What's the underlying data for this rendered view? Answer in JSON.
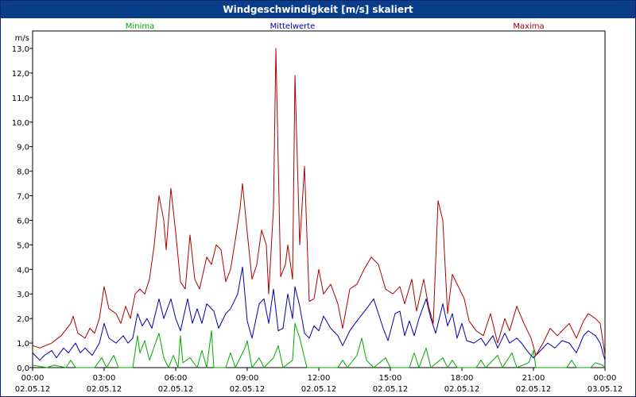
{
  "window": {
    "title": "Windgeschwindigkeit [m/s] skaliert"
  },
  "chart_data": {
    "type": "line",
    "title": "Windgeschwindigkeit [m/s] skaliert",
    "ylabel": "m/s",
    "ylim": [
      0,
      13
    ],
    "y_ticks": [
      "0,0",
      "1,0",
      "2,0",
      "3,0",
      "4,0",
      "5,0",
      "6,0",
      "7,0",
      "8,0",
      "9,0",
      "10,0",
      "11,0",
      "12,0",
      "13,0"
    ],
    "xlim_hours": [
      0,
      24
    ],
    "x_ticks": [
      {
        "time": "00:00",
        "date": "02.05.12"
      },
      {
        "time": "03:00",
        "date": "02.05.12"
      },
      {
        "time": "06:00",
        "date": "02.05.12"
      },
      {
        "time": "09:00",
        "date": "02.05.12"
      },
      {
        "time": "12:00",
        "date": "02.05.12"
      },
      {
        "time": "15:00",
        "date": "02.05.12"
      },
      {
        "time": "18:00",
        "date": "02.05.12"
      },
      {
        "time": "21:00",
        "date": "02.05.12"
      },
      {
        "time": "00:00",
        "date": "03.05.12"
      }
    ],
    "grid": true,
    "legend": [
      "Minima",
      "Mittelwerte",
      "Maxima"
    ],
    "colors": {
      "min": "#00aa00",
      "mean": "#0000aa",
      "max": "#aa0000",
      "grid": "#000000",
      "frame": "#0a3d8a"
    },
    "series": [
      {
        "name": "Minima",
        "points": [
          [
            0,
            0.1
          ],
          [
            0.6,
            0.0
          ],
          [
            0.9,
            0.1
          ],
          [
            1.4,
            0.0
          ],
          [
            1.6,
            0.3
          ],
          [
            1.8,
            0.0
          ],
          [
            2.6,
            0.0
          ],
          [
            2.9,
            0.4
          ],
          [
            3.1,
            0.0
          ],
          [
            3.4,
            0.5
          ],
          [
            3.6,
            0.0
          ],
          [
            4.2,
            0.0
          ],
          [
            4.4,
            1.3
          ],
          [
            4.5,
            0.6
          ],
          [
            4.7,
            1.1
          ],
          [
            4.9,
            0.3
          ],
          [
            5.3,
            1.4
          ],
          [
            5.5,
            0.4
          ],
          [
            5.7,
            0.0
          ],
          [
            5.9,
            0.5
          ],
          [
            6.1,
            0.0
          ],
          [
            6.2,
            1.3
          ],
          [
            6.3,
            0.2
          ],
          [
            6.6,
            0.4
          ],
          [
            6.9,
            0.0
          ],
          [
            7.1,
            0.7
          ],
          [
            7.3,
            0.0
          ],
          [
            7.5,
            1.5
          ],
          [
            7.6,
            0.0
          ],
          [
            8.1,
            0.0
          ],
          [
            8.3,
            0.6
          ],
          [
            8.5,
            0.0
          ],
          [
            8.9,
            0.8
          ],
          [
            9.0,
            1.1
          ],
          [
            9.2,
            0.0
          ],
          [
            9.5,
            0.4
          ],
          [
            9.7,
            0.0
          ],
          [
            10.1,
            0.4
          ],
          [
            10.3,
            0.9
          ],
          [
            10.5,
            0.0
          ],
          [
            10.9,
            0.3
          ],
          [
            11.0,
            1.8
          ],
          [
            11.2,
            1.2
          ],
          [
            11.5,
            0.0
          ],
          [
            12.8,
            0.0
          ],
          [
            13.0,
            0.3
          ],
          [
            13.2,
            0.0
          ],
          [
            13.6,
            0.5
          ],
          [
            13.8,
            1.2
          ],
          [
            14.0,
            0.3
          ],
          [
            14.3,
            0.0
          ],
          [
            14.8,
            0.4
          ],
          [
            15.0,
            0.0
          ],
          [
            15.8,
            0.0
          ],
          [
            16.0,
            0.6
          ],
          [
            16.2,
            0.0
          ],
          [
            16.5,
            0.8
          ],
          [
            16.7,
            0.0
          ],
          [
            17.2,
            0.4
          ],
          [
            17.4,
            0.0
          ],
          [
            17.6,
            0.3
          ],
          [
            17.8,
            0.0
          ],
          [
            18.6,
            0.0
          ],
          [
            18.8,
            0.3
          ],
          [
            19.0,
            0.0
          ],
          [
            19.5,
            0.5
          ],
          [
            19.7,
            0.0
          ],
          [
            20.1,
            0.6
          ],
          [
            20.3,
            0.0
          ],
          [
            20.8,
            0.2
          ],
          [
            21.0,
            0.7
          ],
          [
            21.1,
            0.0
          ],
          [
            22.4,
            0.0
          ],
          [
            22.6,
            0.3
          ],
          [
            22.8,
            0.0
          ],
          [
            23.4,
            0.0
          ],
          [
            23.6,
            0.2
          ],
          [
            23.9,
            0.1
          ],
          [
            24.0,
            0.0
          ]
        ]
      },
      {
        "name": "Mittelwerte",
        "points": [
          [
            0,
            0.6
          ],
          [
            0.3,
            0.3
          ],
          [
            0.5,
            0.5
          ],
          [
            0.8,
            0.7
          ],
          [
            1.0,
            0.4
          ],
          [
            1.3,
            0.8
          ],
          [
            1.5,
            0.6
          ],
          [
            1.8,
            1.0
          ],
          [
            2.0,
            0.6
          ],
          [
            2.2,
            0.8
          ],
          [
            2.5,
            0.5
          ],
          [
            2.8,
            1.0
          ],
          [
            3.0,
            1.8
          ],
          [
            3.2,
            1.2
          ],
          [
            3.5,
            1.0
          ],
          [
            3.8,
            1.3
          ],
          [
            4.0,
            1.0
          ],
          [
            4.2,
            1.2
          ],
          [
            4.4,
            2.2
          ],
          [
            4.6,
            1.7
          ],
          [
            4.8,
            2.0
          ],
          [
            5.0,
            1.6
          ],
          [
            5.3,
            2.8
          ],
          [
            5.5,
            2.0
          ],
          [
            5.8,
            2.8
          ],
          [
            6.0,
            2.0
          ],
          [
            6.2,
            1.5
          ],
          [
            6.5,
            2.8
          ],
          [
            6.7,
            1.8
          ],
          [
            6.9,
            2.4
          ],
          [
            7.1,
            1.8
          ],
          [
            7.3,
            2.6
          ],
          [
            7.6,
            2.3
          ],
          [
            7.8,
            1.6
          ],
          [
            8.1,
            2.2
          ],
          [
            8.3,
            2.4
          ],
          [
            8.6,
            3.0
          ],
          [
            8.8,
            4.1
          ],
          [
            9.0,
            1.9
          ],
          [
            9.2,
            1.2
          ],
          [
            9.5,
            2.6
          ],
          [
            9.7,
            2.8
          ],
          [
            9.9,
            1.8
          ],
          [
            10.1,
            3.2
          ],
          [
            10.3,
            1.5
          ],
          [
            10.5,
            1.6
          ],
          [
            10.7,
            3.0
          ],
          [
            10.9,
            2.0
          ],
          [
            11.0,
            3.3
          ],
          [
            11.2,
            2.5
          ],
          [
            11.4,
            1.4
          ],
          [
            11.6,
            1.2
          ],
          [
            11.8,
            1.7
          ],
          [
            12.0,
            1.5
          ],
          [
            12.2,
            2.1
          ],
          [
            12.5,
            1.6
          ],
          [
            12.8,
            1.3
          ],
          [
            13.0,
            0.9
          ],
          [
            13.3,
            1.5
          ],
          [
            13.6,
            1.9
          ],
          [
            14.0,
            2.4
          ],
          [
            14.3,
            2.8
          ],
          [
            14.5,
            2.2
          ],
          [
            14.7,
            1.6
          ],
          [
            14.9,
            1.1
          ],
          [
            15.2,
            2.2
          ],
          [
            15.4,
            2.3
          ],
          [
            15.6,
            1.3
          ],
          [
            15.8,
            1.9
          ],
          [
            16.0,
            1.3
          ],
          [
            16.2,
            2.0
          ],
          [
            16.5,
            2.8
          ],
          [
            16.7,
            2.0
          ],
          [
            16.9,
            1.4
          ],
          [
            17.2,
            2.6
          ],
          [
            17.4,
            1.7
          ],
          [
            17.6,
            2.2
          ],
          [
            17.8,
            1.2
          ],
          [
            18.0,
            1.8
          ],
          [
            18.2,
            1.1
          ],
          [
            18.5,
            1.0
          ],
          [
            18.8,
            1.2
          ],
          [
            19.0,
            0.9
          ],
          [
            19.3,
            1.3
          ],
          [
            19.5,
            0.8
          ],
          [
            19.8,
            1.4
          ],
          [
            20.0,
            1.0
          ],
          [
            20.3,
            1.2
          ],
          [
            20.5,
            1.0
          ],
          [
            20.8,
            0.6
          ],
          [
            21.0,
            0.4
          ],
          [
            21.3,
            0.7
          ],
          [
            21.6,
            1.0
          ],
          [
            21.9,
            0.8
          ],
          [
            22.2,
            1.1
          ],
          [
            22.5,
            1.0
          ],
          [
            22.8,
            0.6
          ],
          [
            23.1,
            1.3
          ],
          [
            23.3,
            1.5
          ],
          [
            23.6,
            1.3
          ],
          [
            23.8,
            1.0
          ],
          [
            24.0,
            0.3
          ]
        ]
      },
      {
        "name": "Maxima",
        "points": [
          [
            0,
            0.9
          ],
          [
            0.3,
            0.8
          ],
          [
            0.8,
            1.0
          ],
          [
            1.2,
            1.3
          ],
          [
            1.6,
            1.8
          ],
          [
            1.7,
            2.1
          ],
          [
            1.9,
            1.4
          ],
          [
            2.2,
            1.2
          ],
          [
            2.4,
            1.6
          ],
          [
            2.6,
            1.4
          ],
          [
            2.8,
            2.0
          ],
          [
            3.0,
            3.3
          ],
          [
            3.2,
            2.4
          ],
          [
            3.5,
            2.2
          ],
          [
            3.7,
            1.8
          ],
          [
            3.9,
            2.5
          ],
          [
            4.1,
            2.0
          ],
          [
            4.3,
            3.0
          ],
          [
            4.5,
            3.2
          ],
          [
            4.7,
            3.0
          ],
          [
            4.9,
            3.6
          ],
          [
            5.1,
            5.0
          ],
          [
            5.3,
            7.0
          ],
          [
            5.5,
            6.0
          ],
          [
            5.6,
            4.8
          ],
          [
            5.8,
            7.3
          ],
          [
            6.0,
            5.5
          ],
          [
            6.2,
            3.5
          ],
          [
            6.4,
            3.2
          ],
          [
            6.6,
            5.4
          ],
          [
            6.8,
            3.6
          ],
          [
            7.0,
            3.2
          ],
          [
            7.3,
            4.5
          ],
          [
            7.5,
            4.2
          ],
          [
            7.7,
            5.0
          ],
          [
            7.9,
            4.8
          ],
          [
            8.1,
            3.5
          ],
          [
            8.3,
            4.0
          ],
          [
            8.5,
            5.2
          ],
          [
            8.7,
            6.5
          ],
          [
            8.8,
            7.5
          ],
          [
            9.0,
            5.5
          ],
          [
            9.2,
            3.6
          ],
          [
            9.4,
            4.2
          ],
          [
            9.6,
            5.6
          ],
          [
            9.8,
            5.0
          ],
          [
            9.9,
            3.0
          ],
          [
            10.1,
            6.5
          ],
          [
            10.2,
            13.0
          ],
          [
            10.4,
            3.7
          ],
          [
            10.6,
            4.2
          ],
          [
            10.7,
            5.0
          ],
          [
            10.9,
            3.6
          ],
          [
            11.0,
            11.9
          ],
          [
            11.2,
            5.0
          ],
          [
            11.4,
            8.2
          ],
          [
            11.6,
            2.7
          ],
          [
            11.8,
            2.8
          ],
          [
            12.0,
            4.0
          ],
          [
            12.2,
            3.0
          ],
          [
            12.5,
            3.4
          ],
          [
            12.8,
            2.6
          ],
          [
            13.0,
            1.6
          ],
          [
            13.3,
            3.2
          ],
          [
            13.6,
            3.4
          ],
          [
            13.9,
            4.0
          ],
          [
            14.2,
            4.5
          ],
          [
            14.5,
            4.2
          ],
          [
            14.8,
            3.2
          ],
          [
            15.1,
            3.0
          ],
          [
            15.4,
            3.3
          ],
          [
            15.6,
            2.6
          ],
          [
            15.9,
            3.6
          ],
          [
            16.1,
            2.3
          ],
          [
            16.4,
            3.6
          ],
          [
            16.6,
            2.5
          ],
          [
            16.8,
            1.8
          ],
          [
            17.0,
            6.8
          ],
          [
            17.2,
            6.0
          ],
          [
            17.4,
            2.2
          ],
          [
            17.6,
            3.8
          ],
          [
            17.8,
            3.4
          ],
          [
            18.1,
            2.8
          ],
          [
            18.3,
            1.9
          ],
          [
            18.6,
            1.5
          ],
          [
            18.9,
            1.3
          ],
          [
            19.2,
            2.2
          ],
          [
            19.5,
            1.0
          ],
          [
            19.8,
            2.0
          ],
          [
            20.0,
            1.5
          ],
          [
            20.3,
            2.5
          ],
          [
            20.6,
            1.8
          ],
          [
            20.9,
            1.2
          ],
          [
            21.1,
            0.5
          ],
          [
            21.4,
            1.0
          ],
          [
            21.7,
            1.6
          ],
          [
            22.0,
            1.3
          ],
          [
            22.2,
            1.5
          ],
          [
            22.5,
            1.8
          ],
          [
            22.8,
            1.2
          ],
          [
            23.1,
            1.9
          ],
          [
            23.3,
            2.2
          ],
          [
            23.6,
            2.0
          ],
          [
            23.8,
            1.8
          ],
          [
            24.0,
            0.5
          ]
        ]
      }
    ]
  }
}
